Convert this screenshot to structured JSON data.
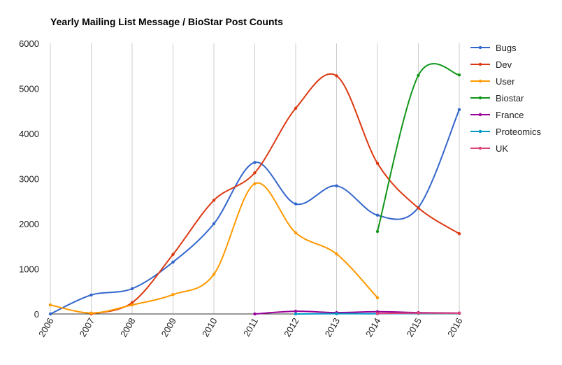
{
  "chart_data": {
    "type": "line",
    "title": "Yearly Mailing List Message / BioStar Post Counts",
    "xlabel": "",
    "ylabel": "",
    "categories": [
      "2006",
      "2007",
      "2008",
      "2009",
      "2010",
      "2011",
      "2012",
      "2013",
      "2014",
      "2015",
      "2016"
    ],
    "ylim": [
      0,
      6000
    ],
    "yticks": [
      0,
      1000,
      2000,
      3000,
      4000,
      5000,
      6000
    ],
    "grid": "vertical",
    "legend_position": "right",
    "series": [
      {
        "name": "Bugs",
        "color": "#3366cc",
        "values": [
          0,
          420,
          560,
          1150,
          2000,
          3360,
          2440,
          2840,
          2190,
          2360,
          4530
        ]
      },
      {
        "name": "Dev",
        "color": "#dc3912",
        "values": [
          null,
          0,
          250,
          1320,
          2520,
          3130,
          4560,
          5280,
          3340,
          2350,
          1780
        ]
      },
      {
        "name": "User",
        "color": "#ff9900",
        "values": [
          200,
          20,
          200,
          430,
          880,
          2890,
          1800,
          1330,
          360,
          null,
          null
        ]
      },
      {
        "name": "Biostar",
        "color": "#109618",
        "values": [
          null,
          null,
          null,
          null,
          null,
          null,
          null,
          null,
          1830,
          5290,
          5300
        ]
      },
      {
        "name": "France",
        "color": "#990099",
        "values": [
          null,
          null,
          null,
          null,
          null,
          0,
          60,
          30,
          50,
          30,
          20
        ]
      },
      {
        "name": "Proteomics",
        "color": "#0099c6",
        "values": [
          null,
          null,
          null,
          null,
          null,
          null,
          0,
          5,
          5,
          10,
          10
        ]
      },
      {
        "name": "UK",
        "color": "#dd4477",
        "values": [
          null,
          null,
          null,
          null,
          null,
          null,
          null,
          null,
          10,
          20,
          15
        ]
      }
    ]
  }
}
